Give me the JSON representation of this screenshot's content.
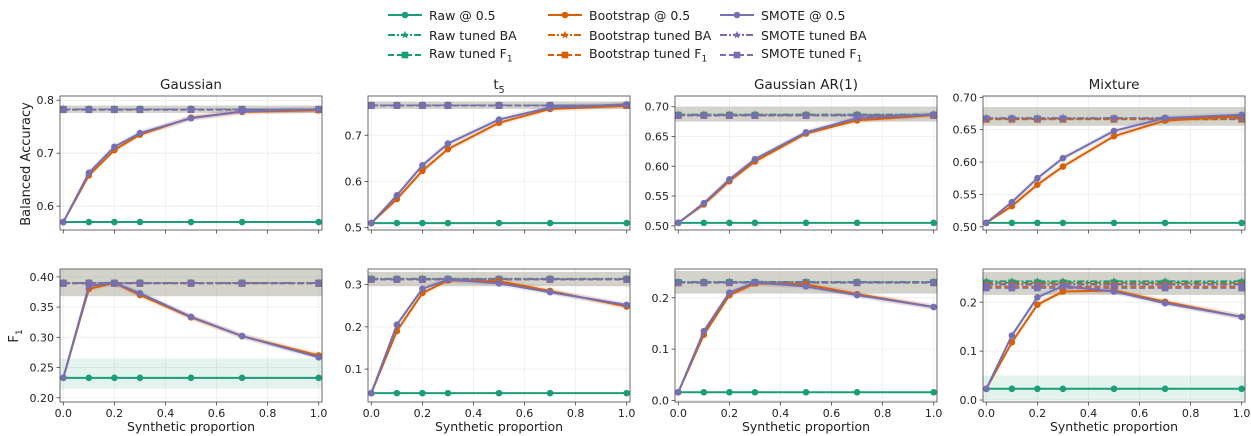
{
  "legend": {
    "entries": [
      {
        "label": "Raw @ 0.5",
        "method": "raw",
        "variant": "at05"
      },
      {
        "label": "Raw tuned BA",
        "method": "raw",
        "variant": "tunedBA"
      },
      {
        "label": "Raw tuned F",
        "sub": "1",
        "method": "raw",
        "variant": "tunedF1"
      },
      {
        "label": "Bootstrap @ 0.5",
        "method": "bootstrap",
        "variant": "at05"
      },
      {
        "label": "Bootstrap tuned BA",
        "method": "bootstrap",
        "variant": "tunedBA"
      },
      {
        "label": "Bootstrap tuned F",
        "sub": "1",
        "method": "bootstrap",
        "variant": "tunedF1"
      },
      {
        "label": "SMOTE @ 0.5",
        "method": "smote",
        "variant": "at05"
      },
      {
        "label": "SMOTE tuned BA",
        "method": "smote",
        "variant": "tunedBA"
      },
      {
        "label": "SMOTE tuned F",
        "sub": "1",
        "method": "smote",
        "variant": "tunedF1"
      }
    ]
  },
  "colors": {
    "raw": "#1b9e77",
    "bootstrap": "#d95f02",
    "smote": "#7570b3",
    "tuned_band": "#a8a89a"
  },
  "chart_data": {
    "type": "line",
    "xlabel": "Synthetic proportion",
    "x": [
      0.0,
      0.1,
      0.2,
      0.3,
      0.5,
      0.7,
      1.0
    ],
    "xticks": [
      "0.0",
      "0.2",
      "0.4",
      "0.6",
      "0.8",
      "1.0"
    ],
    "columns": [
      {
        "title": "Gaussian"
      },
      {
        "title": "t",
        "title_sub": "5"
      },
      {
        "title": "Gaussian AR(1)"
      },
      {
        "title": "Mixture"
      }
    ],
    "rows": [
      {
        "ylabel": "Balanced Accuracy"
      },
      {
        "ylabel": "F",
        "ylabel_sub": "1"
      }
    ],
    "panels": [
      {
        "row": 0,
        "col": 0,
        "ylim": [
          0.555,
          0.808
        ],
        "yticks": [
          0.6,
          0.7,
          0.8
        ],
        "ytick_labels": [
          "0.6",
          "0.7",
          "0.8"
        ],
        "raw_at05": {
          "values": [
            0.57,
            0.57,
            0.57,
            0.57,
            0.57,
            0.57,
            0.57
          ]
        },
        "bootstrap_at05": {
          "values": [
            0.57,
            0.658,
            0.706,
            0.735,
            0.767,
            0.778,
            0.781
          ]
        },
        "smote_at05": {
          "values": [
            0.57,
            0.663,
            0.712,
            0.738,
            0.766,
            0.779,
            0.783
          ]
        },
        "tuned": {
          "raw_ba": 0.783,
          "raw_f1": 0.783,
          "bootstrap_ba": 0.783,
          "bootstrap_f1": 0.782,
          "smote_ba": 0.783,
          "smote_f1": 0.782,
          "band": [
            0.776,
            0.79
          ]
        }
      },
      {
        "row": 0,
        "col": 1,
        "ylim": [
          0.495,
          0.785
        ],
        "yticks": [
          0.5,
          0.6,
          0.7
        ],
        "ytick_labels": [
          "0.5",
          "0.6",
          "0.7"
        ],
        "raw_at05": {
          "values": [
            0.51,
            0.51,
            0.51,
            0.51,
            0.51,
            0.51,
            0.51
          ]
        },
        "bootstrap_at05": {
          "values": [
            0.51,
            0.562,
            0.623,
            0.67,
            0.727,
            0.757,
            0.764
          ]
        },
        "smote_at05": {
          "values": [
            0.51,
            0.57,
            0.635,
            0.682,
            0.734,
            0.76,
            0.767
          ]
        },
        "tuned": {
          "raw_ba": 0.765,
          "raw_f1": 0.765,
          "bootstrap_ba": 0.765,
          "bootstrap_f1": 0.764,
          "smote_ba": 0.765,
          "smote_f1": 0.764,
          "band": [
            0.757,
            0.773
          ]
        }
      },
      {
        "row": 0,
        "col": 2,
        "ylim": [
          0.493,
          0.718
        ],
        "yticks": [
          0.5,
          0.55,
          0.6,
          0.65,
          0.7
        ],
        "ytick_labels": [
          "0.50",
          "0.55",
          "0.60",
          "0.65",
          "0.70"
        ],
        "raw_at05": {
          "values": [
            0.505,
            0.505,
            0.505,
            0.505,
            0.505,
            0.505,
            0.505
          ]
        },
        "bootstrap_at05": {
          "values": [
            0.505,
            0.536,
            0.575,
            0.608,
            0.655,
            0.677,
            0.686
          ]
        },
        "smote_at05": {
          "values": [
            0.505,
            0.538,
            0.578,
            0.612,
            0.657,
            0.681,
            0.687
          ]
        },
        "tuned": {
          "raw_ba": 0.687,
          "raw_f1": 0.686,
          "bootstrap_ba": 0.686,
          "bootstrap_f1": 0.685,
          "smote_ba": 0.686,
          "smote_f1": 0.685,
          "band": [
            0.675,
            0.7
          ]
        }
      },
      {
        "row": 0,
        "col": 3,
        "ylim": [
          0.495,
          0.702
        ],
        "yticks": [
          0.5,
          0.55,
          0.6,
          0.65,
          0.7
        ],
        "ytick_labels": [
          "0.50",
          "0.55",
          "0.60",
          "0.65",
          "0.70"
        ],
        "raw_at05": {
          "values": [
            0.506,
            0.506,
            0.506,
            0.506,
            0.506,
            0.506,
            0.506
          ]
        },
        "bootstrap_at05": {
          "values": [
            0.506,
            0.532,
            0.565,
            0.593,
            0.64,
            0.664,
            0.671
          ]
        },
        "smote_at05": {
          "values": [
            0.506,
            0.538,
            0.575,
            0.606,
            0.648,
            0.668,
            0.673
          ]
        },
        "tuned": {
          "raw_ba": 0.668,
          "raw_f1": 0.666,
          "bootstrap_ba": 0.667,
          "bootstrap_f1": 0.666,
          "smote_ba": 0.668,
          "smote_f1": 0.667,
          "band": [
            0.656,
            0.685
          ]
        }
      },
      {
        "row": 1,
        "col": 0,
        "ylim": [
          0.193,
          0.413
        ],
        "yticks": [
          0.2,
          0.25,
          0.3,
          0.35,
          0.4
        ],
        "ytick_labels": [
          "0.20",
          "0.25",
          "0.30",
          "0.35",
          "0.40"
        ],
        "raw_at05": {
          "values": [
            0.233,
            0.233,
            0.233,
            0.233,
            0.233,
            0.233,
            0.233
          ],
          "band": [
            0.215,
            0.265
          ]
        },
        "bootstrap_at05": {
          "values": [
            0.233,
            0.38,
            0.39,
            0.37,
            0.333,
            0.302,
            0.27
          ]
        },
        "smote_at05": {
          "values": [
            0.233,
            0.385,
            0.39,
            0.373,
            0.334,
            0.302,
            0.267
          ]
        },
        "tuned": {
          "raw_ba": 0.39,
          "raw_f1": 0.39,
          "bootstrap_ba": 0.39,
          "bootstrap_f1": 0.389,
          "smote_ba": 0.39,
          "smote_f1": 0.389,
          "band": [
            0.368,
            0.412
          ]
        }
      },
      {
        "row": 1,
        "col": 1,
        "ylim": [
          0.022,
          0.337
        ],
        "yticks": [
          0.1,
          0.2,
          0.3
        ],
        "ytick_labels": [
          "0.1",
          "0.2",
          "0.3"
        ],
        "raw_at05": {
          "values": [
            0.043,
            0.043,
            0.043,
            0.043,
            0.043,
            0.043,
            0.043
          ]
        },
        "bootstrap_at05": {
          "values": [
            0.043,
            0.19,
            0.28,
            0.31,
            0.308,
            0.285,
            0.248
          ]
        },
        "smote_at05": {
          "values": [
            0.043,
            0.205,
            0.29,
            0.312,
            0.303,
            0.282,
            0.252
          ]
        },
        "tuned": {
          "raw_ba": 0.314,
          "raw_f1": 0.313,
          "bootstrap_ba": 0.313,
          "bootstrap_f1": 0.312,
          "smote_ba": 0.313,
          "smote_f1": 0.312,
          "band": [
            0.296,
            0.33
          ]
        }
      },
      {
        "row": 1,
        "col": 2,
        "ylim": [
          -0.003,
          0.256
        ],
        "yticks": [
          0.0,
          0.1,
          0.2
        ],
        "ytick_labels": [
          "0.0",
          "0.1",
          "0.2"
        ],
        "raw_at05": {
          "values": [
            0.016,
            0.016,
            0.016,
            0.016,
            0.016,
            0.016,
            0.016
          ]
        },
        "bootstrap_at05": {
          "values": [
            0.016,
            0.128,
            0.205,
            0.228,
            0.226,
            0.207,
            0.182
          ]
        },
        "smote_at05": {
          "values": [
            0.016,
            0.135,
            0.21,
            0.23,
            0.222,
            0.205,
            0.182
          ]
        },
        "tuned": {
          "raw_ba": 0.231,
          "raw_f1": 0.23,
          "bootstrap_ba": 0.23,
          "bootstrap_f1": 0.229,
          "smote_ba": 0.23,
          "smote_f1": 0.229,
          "band": [
            0.208,
            0.252
          ]
        }
      },
      {
        "row": 1,
        "col": 3,
        "ylim": [
          -0.004,
          0.268
        ],
        "yticks": [
          0.0,
          0.1,
          0.2
        ],
        "ytick_labels": [
          "0.0",
          "0.1",
          "0.2"
        ],
        "raw_at05": {
          "values": [
            0.023,
            0.023,
            0.023,
            0.023,
            0.023,
            0.023,
            0.023
          ],
          "band": [
            0.0,
            0.05
          ]
        },
        "bootstrap_at05": {
          "values": [
            0.023,
            0.118,
            0.195,
            0.222,
            0.224,
            0.201,
            0.17
          ]
        },
        "smote_at05": {
          "values": [
            0.023,
            0.132,
            0.21,
            0.233,
            0.222,
            0.198,
            0.17
          ]
        },
        "tuned": {
          "raw_ba": 0.243,
          "raw_f1": 0.24,
          "bootstrap_ba": 0.238,
          "bootstrap_f1": 0.232,
          "smote_ba": 0.236,
          "smote_f1": 0.229,
          "band": [
            0.215,
            0.262
          ]
        }
      }
    ]
  }
}
